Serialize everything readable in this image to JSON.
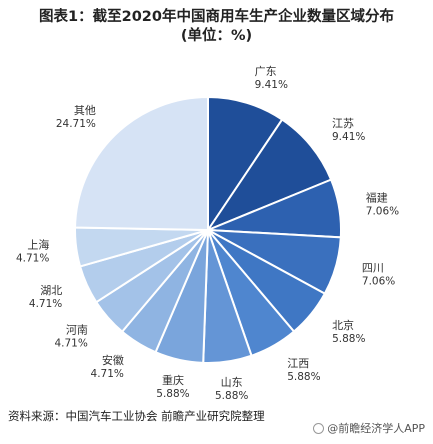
{
  "chart_title": [
    "图表1：截至2020年中国商用车生产企业数量区域分布",
    "(单位：%)"
  ],
  "source": "资料来源：中国汽车工业协会 前瞻产业研究院整理",
  "brand": "@前瞻经济学人APP",
  "chart_data": {
    "type": "pie",
    "title": "图表1：截至2020年中国商用车生产企业数量区域分布 (单位：%)",
    "unit": "%",
    "categories": [
      "广东",
      "江苏",
      "福建",
      "四川",
      "北京",
      "江西",
      "山东",
      "重庆",
      "安徽",
      "河南",
      "湖北",
      "上海",
      "其他"
    ],
    "values": [
      9.41,
      9.41,
      7.06,
      7.06,
      5.88,
      5.88,
      5.88,
      5.88,
      4.71,
      4.71,
      4.71,
      4.71,
      24.71
    ],
    "labels": [
      "9.41%",
      "9.41%",
      "7.06%",
      "7.06%",
      "5.88%",
      "5.88%",
      "5.88%",
      "5.88%",
      "4.71%",
      "4.71%",
      "4.71%",
      "4.71%",
      "24.71%"
    ],
    "colors": [
      "#1f4e99",
      "#1f4e99",
      "#2d61b0",
      "#3a70be",
      "#3f77c4",
      "#4f86cf",
      "#6495d6",
      "#7aa5dc",
      "#8fb4e2",
      "#a3c2e8",
      "#b3cdec",
      "#c3d8f0",
      "#d6e3f5"
    ],
    "start_angle_deg": 0,
    "direction": "clockwise",
    "legend": "none"
  }
}
